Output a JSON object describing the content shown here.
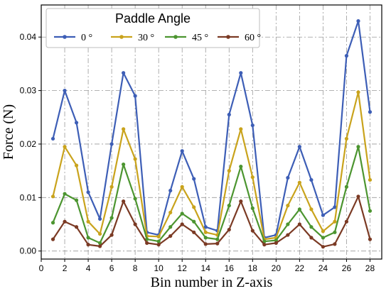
{
  "chart_data": {
    "type": "line",
    "xlabel": "Bin number in Z-axis",
    "ylabel": "Force (N)",
    "xlim": [
      0,
      29
    ],
    "ylim": [
      -0.0015,
      0.046
    ],
    "xticks": [
      0,
      2,
      4,
      6,
      8,
      10,
      12,
      14,
      16,
      18,
      20,
      22,
      24,
      26,
      28
    ],
    "yticks": [
      0.0,
      0.01,
      0.02,
      0.03,
      0.04
    ],
    "ytick_labels": [
      "0.00",
      "0.01",
      "0.02",
      "0.03",
      "0.04"
    ],
    "grid": true,
    "legend": {
      "title": "Paddle Angle",
      "placement": "top-left",
      "columns": 4
    },
    "x": [
      1,
      2,
      3,
      4,
      5,
      6,
      7,
      8,
      9,
      10,
      11,
      12,
      13,
      14,
      15,
      16,
      17,
      18,
      19,
      20,
      21,
      22,
      23,
      24,
      25,
      26,
      27,
      28
    ],
    "series": [
      {
        "name": "0 °",
        "color": "#3d5eb6",
        "values": [
          0.021,
          0.03,
          0.024,
          0.011,
          0.006,
          0.02,
          0.0333,
          0.029,
          0.0035,
          0.003,
          0.0113,
          0.0187,
          0.0135,
          0.0045,
          0.0038,
          0.0255,
          0.0333,
          0.0235,
          0.0025,
          0.003,
          0.0137,
          0.0195,
          0.0133,
          0.0067,
          0.0082,
          0.0365,
          0.043,
          0.026
        ]
      },
      {
        "name": "30 °",
        "color": "#c9a31c",
        "values": [
          0.0102,
          0.0195,
          0.016,
          0.0055,
          0.0032,
          0.012,
          0.0228,
          0.0172,
          0.0028,
          0.0027,
          0.0072,
          0.012,
          0.0082,
          0.0035,
          0.003,
          0.015,
          0.0228,
          0.0138,
          0.0022,
          0.0025,
          0.0085,
          0.0128,
          0.0078,
          0.0037,
          0.0055,
          0.021,
          0.0297,
          0.0133
        ]
      },
      {
        "name": "45 °",
        "color": "#4c9530",
        "values": [
          0.0053,
          0.0107,
          0.0095,
          0.0025,
          0.0015,
          0.0062,
          0.0162,
          0.0098,
          0.0022,
          0.0018,
          0.0045,
          0.007,
          0.0055,
          0.0025,
          0.0022,
          0.0085,
          0.0158,
          0.008,
          0.0018,
          0.002,
          0.005,
          0.0078,
          0.0045,
          0.0025,
          0.0035,
          0.012,
          0.0195,
          0.0075
        ]
      },
      {
        "name": "60 °",
        "color": "#7b3a24",
        "values": [
          0.0022,
          0.0055,
          0.0045,
          0.0012,
          0.0009,
          0.003,
          0.0093,
          0.005,
          0.0015,
          0.0012,
          0.0028,
          0.005,
          0.0035,
          0.0013,
          0.0014,
          0.004,
          0.0093,
          0.0038,
          0.0012,
          0.0015,
          0.003,
          0.005,
          0.0025,
          0.0008,
          0.0013,
          0.0055,
          0.0102,
          0.0022
        ]
      }
    ]
  }
}
